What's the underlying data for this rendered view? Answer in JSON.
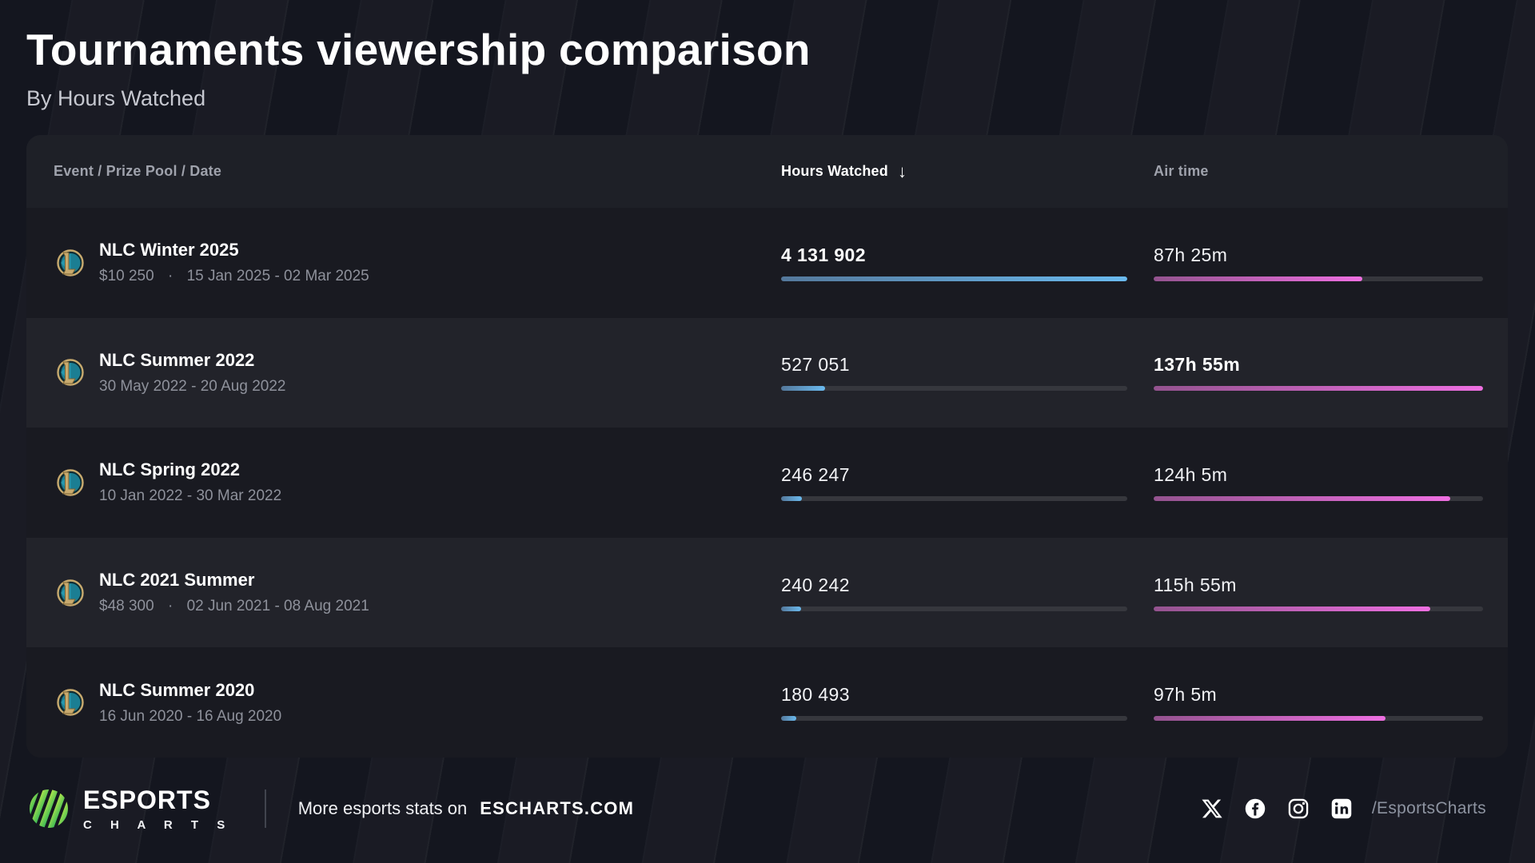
{
  "page": {
    "title": "Tournaments viewership comparison",
    "subtitle": "By Hours Watched"
  },
  "table": {
    "header": {
      "event": "Event / Prize Pool / Date",
      "hours": "Hours Watched",
      "air": "Air time",
      "sort_icon": "↓"
    },
    "rows": [
      {
        "name": "NLC Winter 2025",
        "prize": "$10 250",
        "dot": "·",
        "dates": "15 Jan 2025 - 02 Mar 2025",
        "hours": "4 131 902",
        "hours_pct": 100,
        "hours_max": true,
        "air": "87h 25m",
        "air_pct": 63.4,
        "air_max": false
      },
      {
        "name": "NLC Summer 2022",
        "dates": "30 May 2022 - 20 Aug 2022",
        "hours": "527 051",
        "hours_pct": 12.8,
        "hours_max": false,
        "air": "137h 55m",
        "air_pct": 100,
        "air_max": true
      },
      {
        "name": "NLC Spring 2022",
        "dates": "10 Jan 2022 - 30 Mar 2022",
        "hours": "246 247",
        "hours_pct": 6,
        "hours_max": false,
        "air": "124h 5m",
        "air_pct": 90,
        "air_max": false
      },
      {
        "name": "NLC 2021 Summer",
        "prize": "$48 300",
        "dot": "·",
        "dates": "02 Jun 2021 - 08 Aug 2021",
        "hours": "240 242",
        "hours_pct": 5.8,
        "hours_max": false,
        "air": "115h 55m",
        "air_pct": 84,
        "air_max": false
      },
      {
        "name": "NLC Summer 2020",
        "dates": "16 Jun 2020 - 16 Aug 2020",
        "hours": "180 493",
        "hours_pct": 4.4,
        "hours_max": false,
        "air": "97h 5m",
        "air_pct": 70.4,
        "air_max": false
      }
    ]
  },
  "footer": {
    "brand_top": "ESPORTS",
    "brand_bottom": "C H A R T S",
    "tagline": "More esports stats on",
    "site": "ESCHARTS.COM",
    "handle": "/EsportsCharts",
    "social_icons": [
      "x-twitter",
      "facebook",
      "instagram",
      "linkedin"
    ]
  },
  "colors": {
    "page_background": "#14161F",
    "card_background": "#1F2129",
    "row_odd": "#191A21",
    "row_even": "#22232A",
    "hours_bar_gradient": [
      "#54789B",
      "#6ABAEF"
    ],
    "air_bar_gradient": [
      "#94538F",
      "#EE6FE1"
    ],
    "bar_track": "#36373D",
    "brand_green_gradient": [
      "#B9E84B",
      "#2EB556"
    ]
  },
  "chart_data": {
    "type": "table",
    "title": "Tournaments viewership comparison",
    "subtitle": "By Hours Watched",
    "columns": [
      "Event / Prize Pool / Date",
      "Hours Watched",
      "Air time"
    ],
    "sort": {
      "column": "Hours Watched",
      "direction": "desc"
    },
    "rows": [
      {
        "event": "NLC Winter 2025",
        "prize_pool": "$10 250",
        "dates": "15 Jan 2025 - 02 Mar 2025",
        "hours_watched": 4131902,
        "air_time": "87h 25m"
      },
      {
        "event": "NLC Summer 2022",
        "dates": "30 May 2022 - 20 Aug 2022",
        "hours_watched": 527051,
        "air_time": "137h 55m"
      },
      {
        "event": "NLC Spring 2022",
        "dates": "10 Jan 2022 - 30 Mar 2022",
        "hours_watched": 246247,
        "air_time": "124h 5m"
      },
      {
        "event": "NLC 2021 Summer",
        "prize_pool": "$48 300",
        "dates": "02 Jun 2021 - 08 Aug 2021",
        "hours_watched": 240242,
        "air_time": "115h 55m"
      },
      {
        "event": "NLC Summer 2020",
        "dates": "16 Jun 2020 - 16 Aug 2020",
        "hours_watched": 180493,
        "air_time": "97h 5m"
      }
    ],
    "bar_scale": {
      "hours_watched_max": 4131902,
      "air_time_max": "137h 55m"
    }
  }
}
